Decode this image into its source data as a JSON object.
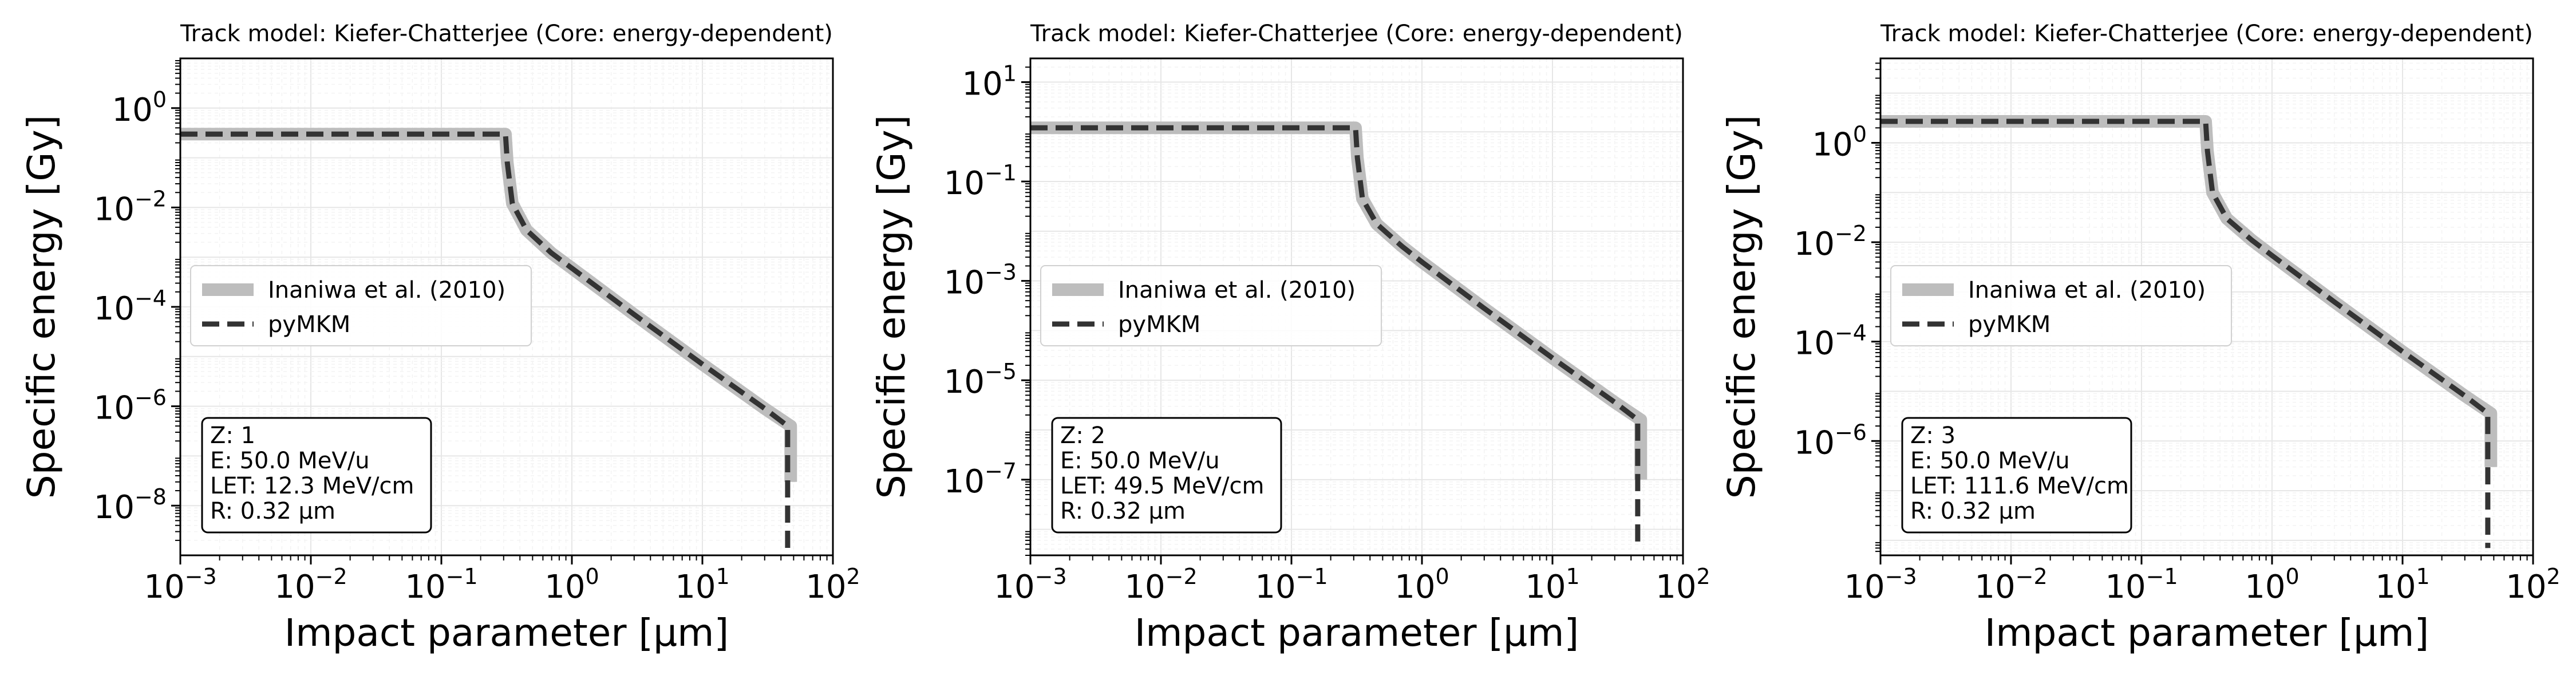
{
  "chart_data": [
    {
      "type": "line",
      "title": "Track model: Kiefer-Chatterjee (Core: energy-dependent)",
      "xlabel": "Impact parameter [μm]",
      "ylabel": "Specific energy [Gy]",
      "xscale": "log",
      "yscale": "log",
      "xlim": [
        0.001,
        100
      ],
      "ylim": [
        1e-09,
        10
      ],
      "xticks": [
        0.001,
        0.01,
        0.1,
        1,
        10,
        100
      ],
      "xtick_labels": [
        {
          "base": "10",
          "exp": "−3"
        },
        {
          "base": "10",
          "exp": "−2"
        },
        {
          "base": "10",
          "exp": "−1"
        },
        {
          "base": "10",
          "exp": "0"
        },
        {
          "base": "10",
          "exp": "1"
        },
        {
          "base": "10",
          "exp": "2"
        }
      ],
      "yticks": [
        1e-08,
        1e-06,
        0.0001,
        0.01,
        1
      ],
      "ytick_labels": [
        {
          "base": "10",
          "exp": "−8"
        },
        {
          "base": "10",
          "exp": "−6"
        },
        {
          "base": "10",
          "exp": "−4"
        },
        {
          "base": "10",
          "exp": "−2"
        },
        {
          "base": "10",
          "exp": "0"
        }
      ],
      "grid": true,
      "legend_position": "center-left",
      "series": [
        {
          "name": "Inaniwa et al. (2010)",
          "style": "solid",
          "color": "#bdbdbd",
          "x": [
            0.001,
            0.31,
            0.32,
            0.35,
            0.45,
            0.7,
            1,
            3,
            10,
            30,
            47.5,
            47.5
          ],
          "y": [
            0.3,
            0.3,
            0.08,
            0.012,
            0.0035,
            0.0012,
            0.0006,
            7e-05,
            7e-06,
            9e-07,
            4e-07,
            3e-08
          ]
        },
        {
          "name": "pyMKM",
          "style": "dashed",
          "color": "#333333",
          "x": [
            0.001,
            0.31,
            0.32,
            0.35,
            0.45,
            0.7,
            1,
            3,
            10,
            30,
            45,
            45
          ],
          "y": [
            0.3,
            0.3,
            0.08,
            0.012,
            0.0035,
            0.0012,
            0.0006,
            7e-05,
            7e-06,
            9e-07,
            4e-07,
            1e-09
          ]
        }
      ],
      "annotation": [
        "Z: 1",
        "E: 50.0 MeV/u",
        "LET: 12.3 MeV/cm",
        "R: 0.32 μm"
      ]
    },
    {
      "type": "line",
      "title": "Track model: Kiefer-Chatterjee (Core: energy-dependent)",
      "xlabel": "Impact parameter [μm]",
      "ylabel": "Specific energy [Gy]",
      "xscale": "log",
      "yscale": "log",
      "xlim": [
        0.001,
        100
      ],
      "ylim": [
        3e-09,
        30
      ],
      "xticks": [
        0.001,
        0.01,
        0.1,
        1,
        10,
        100
      ],
      "xtick_labels": [
        {
          "base": "10",
          "exp": "−3"
        },
        {
          "base": "10",
          "exp": "−2"
        },
        {
          "base": "10",
          "exp": "−1"
        },
        {
          "base": "10",
          "exp": "0"
        },
        {
          "base": "10",
          "exp": "1"
        },
        {
          "base": "10",
          "exp": "2"
        }
      ],
      "yticks": [
        1e-07,
        1e-05,
        0.001,
        0.1,
        10
      ],
      "ytick_labels": [
        {
          "base": "10",
          "exp": "−7"
        },
        {
          "base": "10",
          "exp": "−5"
        },
        {
          "base": "10",
          "exp": "−3"
        },
        {
          "base": "10",
          "exp": "−1"
        },
        {
          "base": "10",
          "exp": "1"
        }
      ],
      "grid": true,
      "legend_position": "center-left",
      "series": [
        {
          "name": "Inaniwa et al. (2010)",
          "style": "solid",
          "color": "#bdbdbd",
          "x": [
            0.001,
            0.31,
            0.32,
            0.35,
            0.45,
            0.7,
            1,
            3,
            10,
            30,
            47.5,
            47.5
          ],
          "y": [
            1.2,
            1.2,
            0.3,
            0.045,
            0.014,
            0.005,
            0.0024,
            0.00028,
            2.8e-05,
            3.6e-06,
            1.6e-06,
            1e-07
          ]
        },
        {
          "name": "pyMKM",
          "style": "dashed",
          "color": "#333333",
          "x": [
            0.001,
            0.31,
            0.32,
            0.35,
            0.45,
            0.7,
            1,
            3,
            10,
            30,
            45,
            45
          ],
          "y": [
            1.2,
            1.2,
            0.3,
            0.045,
            0.014,
            0.005,
            0.0024,
            0.00028,
            2.8e-05,
            3.6e-06,
            1.6e-06,
            4e-09
          ]
        }
      ],
      "annotation": [
        "Z: 2",
        "E: 50.0 MeV/u",
        "LET: 49.5 MeV/cm",
        "R: 0.32 μm"
      ]
    },
    {
      "type": "line",
      "title": "Track model: Kiefer-Chatterjee (Core: energy-dependent)",
      "xlabel": "Impact parameter [μm]",
      "ylabel": "Specific energy [Gy]",
      "xscale": "log",
      "yscale": "log",
      "xlim": [
        0.001,
        100
      ],
      "ylim": [
        5e-09,
        50
      ],
      "xticks": [
        0.001,
        0.01,
        0.1,
        1,
        10,
        100
      ],
      "xtick_labels": [
        {
          "base": "10",
          "exp": "−3"
        },
        {
          "base": "10",
          "exp": "−2"
        },
        {
          "base": "10",
          "exp": "−1"
        },
        {
          "base": "10",
          "exp": "0"
        },
        {
          "base": "10",
          "exp": "1"
        },
        {
          "base": "10",
          "exp": "2"
        }
      ],
      "yticks": [
        1e-06,
        0.0001,
        0.01,
        1
      ],
      "ytick_labels": [
        {
          "base": "10",
          "exp": "−6"
        },
        {
          "base": "10",
          "exp": "−4"
        },
        {
          "base": "10",
          "exp": "−2"
        },
        {
          "base": "10",
          "exp": "0"
        }
      ],
      "grid": true,
      "legend_position": "center-left",
      "series": [
        {
          "name": "Inaniwa et al. (2010)",
          "style": "solid",
          "color": "#bdbdbd",
          "x": [
            0.001,
            0.31,
            0.32,
            0.35,
            0.45,
            0.7,
            1,
            3,
            10,
            30,
            47.5,
            47.5
          ],
          "y": [
            2.7,
            2.7,
            0.68,
            0.1,
            0.03,
            0.011,
            0.0054,
            0.00063,
            6.3e-05,
            8.1e-06,
            3.6e-06,
            3e-07
          ]
        },
        {
          "name": "pyMKM",
          "style": "dashed",
          "color": "#333333",
          "x": [
            0.001,
            0.31,
            0.32,
            0.35,
            0.45,
            0.7,
            1,
            3,
            10,
            30,
            45,
            45
          ],
          "y": [
            2.7,
            2.7,
            0.68,
            0.1,
            0.03,
            0.011,
            0.0054,
            0.00063,
            6.3e-05,
            8.1e-06,
            3.6e-06,
            7e-09
          ]
        }
      ],
      "annotation": [
        "Z: 3",
        "E: 50.0 MeV/u",
        "LET: 111.6 MeV/cm",
        "R: 0.32 μm"
      ]
    }
  ]
}
